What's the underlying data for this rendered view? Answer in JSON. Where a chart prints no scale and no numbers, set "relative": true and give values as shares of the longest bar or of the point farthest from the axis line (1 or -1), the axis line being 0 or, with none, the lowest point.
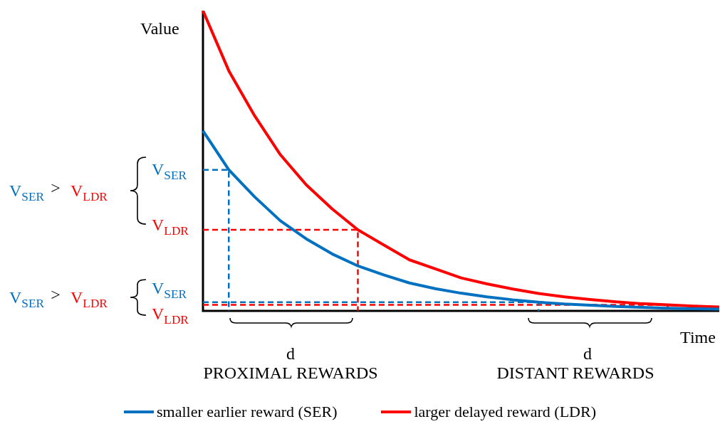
{
  "chart_data": {
    "type": "line",
    "relative": true,
    "xlabel": "Time",
    "ylabel": "Value",
    "categories": [
      null,
      null,
      null,
      null,
      null,
      null,
      null,
      null,
      null,
      null,
      null,
      null,
      null,
      null,
      null,
      null,
      null,
      null,
      null,
      null,
      null
    ],
    "tick_labels": false,
    "legend": "bottom",
    "series": [
      {
        "name": "smaller earlier reward (SER)",
        "color": "#0070c0",
        "values": [
          0.6,
          0.47,
          0.38,
          0.3,
          0.24,
          0.19,
          0.15,
          0.12,
          0.093,
          0.074,
          0.059,
          0.047,
          0.037,
          0.029,
          0.023,
          0.019,
          0.015,
          0.012,
          0.009,
          0.007,
          0.006
        ]
      },
      {
        "name": "larger delayed reward (LDR)",
        "color": "#ff0000",
        "values": [
          1,
          0.8,
          0.65,
          0.52,
          0.42,
          0.34,
          0.27,
          0.22,
          0.17,
          0.14,
          0.11,
          0.09,
          0.073,
          0.058,
          0.047,
          0.038,
          0.03,
          0.024,
          0.02,
          0.016,
          0.013
        ]
      },
      {
        "type": "step",
        "color": "#0070c0",
        "line_style": "dashed",
        "values": [
          0.47,
          0,
          null,
          null,
          null,
          null,
          null,
          null,
          null,
          null,
          null,
          null,
          null,
          null,
          null,
          null,
          null,
          null,
          null,
          null,
          null
        ]
      },
      {
        "type": "step",
        "color": "#ff0000",
        "line_style": "dashed",
        "values": [
          0.27,
          0.27,
          0.27,
          0.27,
          0.27,
          0.27,
          0,
          null,
          null,
          null,
          null,
          null,
          null,
          null,
          null,
          null,
          null,
          null,
          null,
          null,
          null
        ]
      },
      {
        "type": "step",
        "color": "#0070c0",
        "line_style": "dashed",
        "values": [
          0.029,
          0.029,
          0.029,
          0.029,
          0.029,
          0.029,
          0.029,
          0.029,
          0.029,
          0.029,
          0.029,
          0.029,
          0.029,
          0,
          null,
          null,
          null,
          null,
          null,
          null,
          null
        ]
      },
      {
        "type": "step",
        "color": "#ff0000",
        "line_style": "dashed",
        "values": [
          0.02,
          0.02,
          0.02,
          0.02,
          0.02,
          0.02,
          0.02,
          0.02,
          0.02,
          0.02,
          0.02,
          0.02,
          0.02,
          0.02,
          0.02,
          0.02,
          0.02,
          0.02,
          0,
          null,
          null
        ]
      }
    ],
    "annotations": [
      "V$_{SER}$",
      "V$_{LDR}$",
      "V$_{SER}$",
      "V$_{LDR}$",
      "V$_{SER}$",
      ">",
      "V$_{LDR}$",
      "V$_{SER}$",
      ">",
      "V$_{LDR}$",
      "d",
      "d",
      "PROXIMAL REWARDS",
      "DISTANT REWARDS"
    ]
  }
}
